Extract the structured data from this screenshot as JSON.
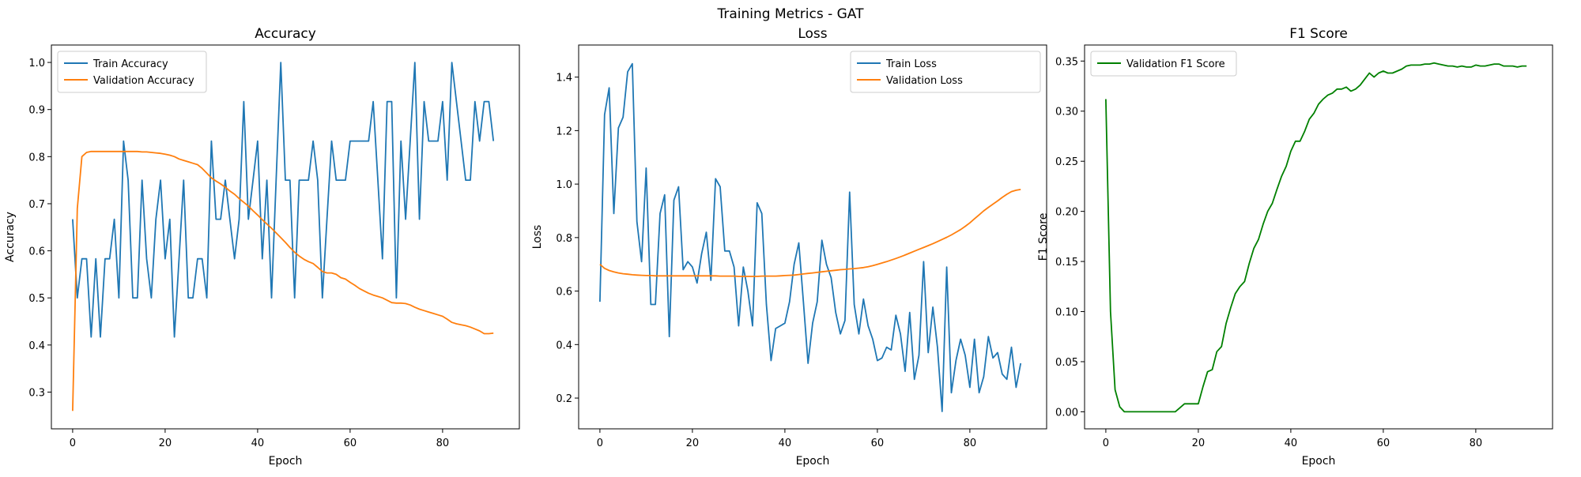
{
  "figure": {
    "suptitle": "Training Metrics - GAT"
  },
  "chart_data": [
    {
      "type": "line",
      "title": "Accuracy",
      "xlabel": "Epoch",
      "ylabel": "Accuracy",
      "xlim": [
        -4.6,
        96.6
      ],
      "ylim": [
        0.222,
        1.037
      ],
      "xticks": [
        0,
        20,
        40,
        60,
        80
      ],
      "yticks": [
        0.3,
        0.4,
        0.5,
        0.6,
        0.7,
        0.8,
        0.9,
        1.0
      ],
      "ytick_labels": [
        "0.3",
        "0.4",
        "0.5",
        "0.6",
        "0.7",
        "0.8",
        "0.9",
        "1.0"
      ],
      "legend_position": "top-left",
      "series": [
        {
          "name": "Train Accuracy",
          "color": "#1f77b4",
          "values": [
            0.667,
            0.5,
            0.583,
            0.583,
            0.417,
            0.583,
            0.417,
            0.583,
            0.583,
            0.667,
            0.5,
            0.833,
            0.75,
            0.5,
            0.5,
            0.75,
            0.583,
            0.5,
            0.667,
            0.75,
            0.583,
            0.667,
            0.417,
            0.583,
            0.75,
            0.5,
            0.5,
            0.583,
            0.583,
            0.5,
            0.833,
            0.667,
            0.667,
            0.75,
            0.667,
            0.583,
            0.667,
            0.917,
            0.667,
            0.75,
            0.833,
            0.583,
            0.75,
            0.5,
            0.75,
            1.0,
            0.75,
            0.75,
            0.5,
            0.75,
            0.75,
            0.75,
            0.833,
            0.75,
            0.5,
            0.667,
            0.833,
            0.75,
            0.75,
            0.75,
            0.833,
            0.833,
            0.833,
            0.833,
            0.833,
            0.917,
            0.75,
            0.583,
            0.917,
            0.917,
            0.5,
            0.833,
            0.667,
            0.833,
            1.0,
            0.667,
            0.917,
            0.833,
            0.833,
            0.833,
            0.917,
            0.75,
            1.0,
            0.917,
            0.833,
            0.75,
            0.75,
            0.917,
            0.833,
            0.917,
            0.917,
            0.833
          ]
        },
        {
          "name": "Validation Accuracy",
          "color": "#ff7f0e",
          "values": [
            0.26,
            0.69,
            0.8,
            0.809,
            0.811,
            0.811,
            0.811,
            0.811,
            0.811,
            0.811,
            0.811,
            0.811,
            0.811,
            0.811,
            0.811,
            0.81,
            0.81,
            0.809,
            0.808,
            0.807,
            0.805,
            0.803,
            0.8,
            0.795,
            0.792,
            0.789,
            0.786,
            0.783,
            0.775,
            0.765,
            0.755,
            0.748,
            0.742,
            0.735,
            0.727,
            0.72,
            0.711,
            0.703,
            0.695,
            0.685,
            0.676,
            0.666,
            0.657,
            0.648,
            0.638,
            0.628,
            0.618,
            0.607,
            0.597,
            0.589,
            0.582,
            0.577,
            0.573,
            0.565,
            0.556,
            0.553,
            0.553,
            0.55,
            0.543,
            0.54,
            0.533,
            0.527,
            0.52,
            0.515,
            0.51,
            0.506,
            0.503,
            0.5,
            0.495,
            0.49,
            0.489,
            0.489,
            0.488,
            0.485,
            0.48,
            0.476,
            0.473,
            0.47,
            0.467,
            0.464,
            0.461,
            0.455,
            0.448,
            0.445,
            0.443,
            0.441,
            0.438,
            0.434,
            0.43,
            0.424,
            0.424,
            0.425
          ]
        }
      ]
    },
    {
      "type": "line",
      "title": "Loss",
      "xlabel": "Epoch",
      "ylabel": "Loss",
      "xlim": [
        -4.6,
        96.6
      ],
      "ylim": [
        0.085,
        1.52
      ],
      "xticks": [
        0,
        20,
        40,
        60,
        80
      ],
      "yticks": [
        0.2,
        0.4,
        0.6,
        0.8,
        1.0,
        1.2,
        1.4
      ],
      "ytick_labels": [
        "0.2",
        "0.4",
        "0.6",
        "0.8",
        "1.0",
        "1.2",
        "1.4"
      ],
      "legend_position": "top-right",
      "series": [
        {
          "name": "Train Loss",
          "color": "#1f77b4",
          "values": [
            0.56,
            1.26,
            1.36,
            0.89,
            1.21,
            1.25,
            1.42,
            1.45,
            0.86,
            0.71,
            1.06,
            0.55,
            0.55,
            0.89,
            0.96,
            0.43,
            0.94,
            0.99,
            0.68,
            0.71,
            0.69,
            0.63,
            0.74,
            0.82,
            0.64,
            1.02,
            0.99,
            0.75,
            0.75,
            0.69,
            0.47,
            0.69,
            0.6,
            0.47,
            0.93,
            0.89,
            0.55,
            0.34,
            0.46,
            0.47,
            0.48,
            0.56,
            0.7,
            0.78,
            0.56,
            0.33,
            0.48,
            0.56,
            0.79,
            0.7,
            0.65,
            0.52,
            0.44,
            0.49,
            0.97,
            0.55,
            0.44,
            0.57,
            0.47,
            0.42,
            0.34,
            0.35,
            0.39,
            0.38,
            0.51,
            0.44,
            0.3,
            0.52,
            0.27,
            0.36,
            0.71,
            0.37,
            0.54,
            0.39,
            0.15,
            0.69,
            0.22,
            0.34,
            0.42,
            0.36,
            0.24,
            0.42,
            0.22,
            0.28,
            0.43,
            0.35,
            0.37,
            0.29,
            0.27,
            0.39,
            0.24,
            0.33
          ]
        },
        {
          "name": "Validation Loss",
          "color": "#ff7f0e",
          "values": [
            0.7,
            0.685,
            0.677,
            0.672,
            0.668,
            0.665,
            0.663,
            0.661,
            0.66,
            0.659,
            0.658,
            0.658,
            0.657,
            0.657,
            0.657,
            0.657,
            0.657,
            0.657,
            0.657,
            0.657,
            0.657,
            0.657,
            0.657,
            0.657,
            0.657,
            0.657,
            0.656,
            0.656,
            0.656,
            0.656,
            0.655,
            0.655,
            0.655,
            0.655,
            0.655,
            0.656,
            0.656,
            0.656,
            0.656,
            0.657,
            0.658,
            0.659,
            0.66,
            0.662,
            0.664,
            0.666,
            0.668,
            0.67,
            0.672,
            0.674,
            0.676,
            0.678,
            0.68,
            0.681,
            0.683,
            0.684,
            0.686,
            0.688,
            0.691,
            0.695,
            0.7,
            0.705,
            0.71,
            0.716,
            0.722,
            0.728,
            0.735,
            0.742,
            0.749,
            0.756,
            0.763,
            0.77,
            0.777,
            0.785,
            0.793,
            0.801,
            0.81,
            0.82,
            0.83,
            0.842,
            0.855,
            0.87,
            0.885,
            0.9,
            0.913,
            0.925,
            0.937,
            0.95,
            0.962,
            0.972,
            0.977,
            0.98
          ]
        }
      ]
    },
    {
      "type": "line",
      "title": "F1 Score",
      "xlabel": "Epoch",
      "ylabel": "F1 Score",
      "xlim": [
        -4.6,
        96.6
      ],
      "ylim": [
        -0.017,
        0.366
      ],
      "xticks": [
        0,
        20,
        40,
        60,
        80
      ],
      "yticks": [
        0.0,
        0.05,
        0.1,
        0.15,
        0.2,
        0.25,
        0.3,
        0.35
      ],
      "ytick_labels": [
        "0.00",
        "0.05",
        "0.10",
        "0.15",
        "0.20",
        "0.25",
        "0.30",
        "0.35"
      ],
      "legend_position": "top-left",
      "series": [
        {
          "name": "Validation F1 Score",
          "color": "#008000",
          "values": [
            0.312,
            0.1,
            0.022,
            0.005,
            0.0,
            0.0,
            0.0,
            0.0,
            0.0,
            0.0,
            0.0,
            0.0,
            0.0,
            0.0,
            0.0,
            0.0,
            0.004,
            0.008,
            0.008,
            0.008,
            0.008,
            0.025,
            0.04,
            0.042,
            0.06,
            0.065,
            0.088,
            0.104,
            0.118,
            0.125,
            0.13,
            0.148,
            0.163,
            0.172,
            0.187,
            0.2,
            0.208,
            0.222,
            0.235,
            0.245,
            0.26,
            0.27,
            0.27,
            0.28,
            0.292,
            0.298,
            0.307,
            0.312,
            0.316,
            0.318,
            0.322,
            0.322,
            0.324,
            0.32,
            0.322,
            0.326,
            0.332,
            0.338,
            0.334,
            0.338,
            0.34,
            0.338,
            0.338,
            0.34,
            0.342,
            0.345,
            0.346,
            0.346,
            0.346,
            0.347,
            0.347,
            0.348,
            0.347,
            0.346,
            0.345,
            0.345,
            0.344,
            0.345,
            0.344,
            0.344,
            0.346,
            0.345,
            0.345,
            0.346,
            0.347,
            0.347,
            0.345,
            0.345,
            0.345,
            0.344,
            0.345,
            0.345
          ]
        }
      ]
    }
  ]
}
